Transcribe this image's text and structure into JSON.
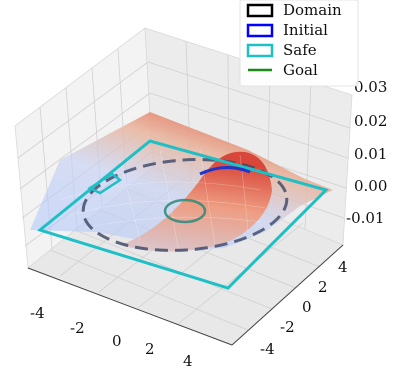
{
  "chart_data": {
    "type": "surface3d",
    "title": "",
    "xlabel": "",
    "ylabel": "",
    "zlabel": "",
    "x_ticks": [
      "-4",
      "-2",
      "0",
      "2",
      "4"
    ],
    "y_ticks": [
      "4",
      "2",
      "0",
      "-2",
      "-4"
    ],
    "z_ticks": [
      "0.03",
      "0.02",
      "0.01",
      "0.00",
      "-0.01"
    ],
    "xlim": [
      -5,
      5
    ],
    "ylim": [
      -5,
      5
    ],
    "zlim": [
      -0.015,
      0.035
    ],
    "grid": true,
    "legend_position": "top-right",
    "legend": [
      {
        "label": "Domain",
        "color": "#000000",
        "marker": "box"
      },
      {
        "label": "Initial",
        "color": "#0000ff",
        "marker": "box"
      },
      {
        "label": "Safe",
        "color": "#1fbfc6",
        "marker": "box"
      },
      {
        "label": "Goal",
        "color": "#1a8a1a",
        "marker": "line"
      }
    ],
    "colors": {
      "domain": "#333a55",
      "safe": "#1fbfc6",
      "initial": "#2233cc",
      "goal": "#2a8a7a",
      "surface_low": "#8fb0f5",
      "surface_high": "#e8604a"
    }
  }
}
